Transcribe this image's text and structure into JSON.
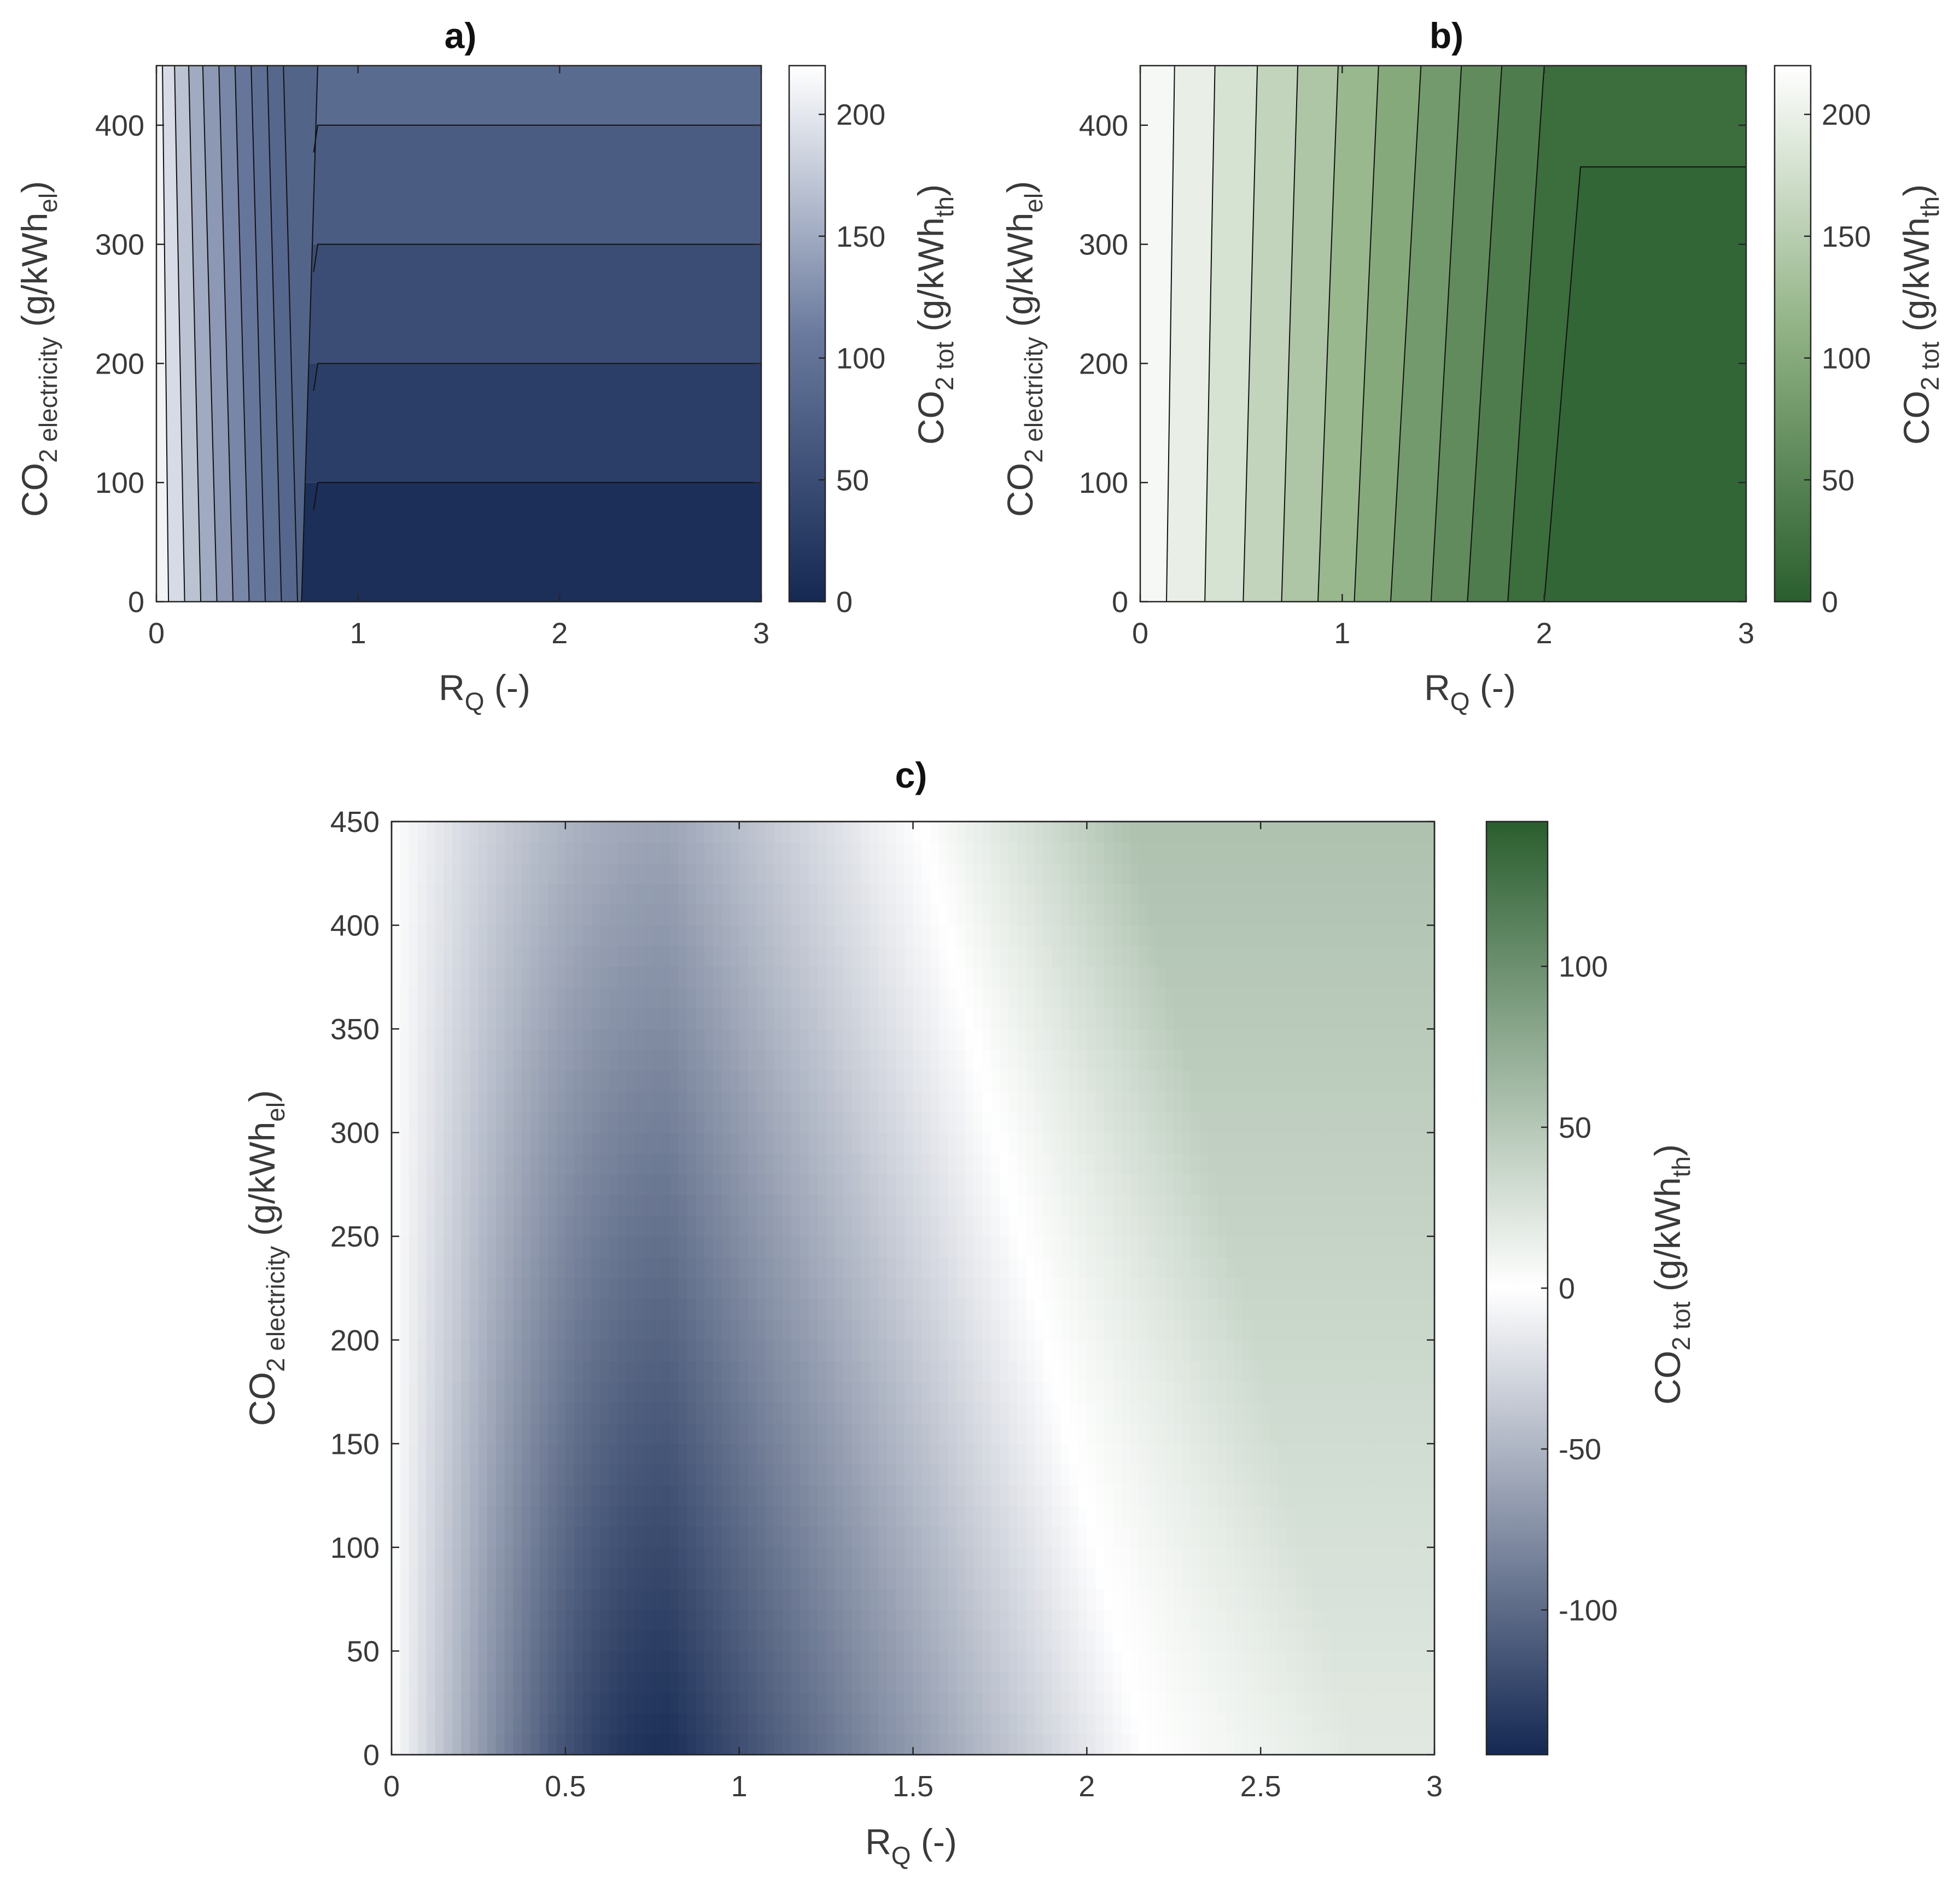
{
  "chart_data": [
    {
      "type": "contour",
      "title": "a)",
      "xlabel": {
        "main": "R",
        "sub": "Q",
        "rest": " (-)"
      },
      "ylabel": {
        "main": "CO",
        "sub": "2 electricity",
        "mid": " (g/kWh",
        "sub2": "el",
        "end": ")"
      },
      "colorbar_label": {
        "main": "CO",
        "sub": "2 tot",
        "mid": " (g/kWh",
        "sub2": "th",
        "end": ")"
      },
      "xlim": [
        0,
        3
      ],
      "ylim": [
        0,
        450
      ],
      "xticks": [
        "0",
        "1",
        "2",
        "3"
      ],
      "yticks": [
        "0",
        "100",
        "200",
        "300",
        "400"
      ],
      "clim": [
        0,
        220
      ],
      "cticks": [
        "0",
        "50",
        "100",
        "150",
        "200"
      ],
      "colormap": [
        "#142852",
        "#6a7a9e",
        "#ffffff"
      ],
      "levels": [
        0,
        20,
        40,
        60,
        80,
        100,
        120,
        140,
        160,
        180,
        200,
        220
      ],
      "contour_x_at_y0": [
        0.06,
        0.14,
        0.22,
        0.3,
        0.38,
        0.46,
        0.54,
        0.62,
        0.7
      ],
      "contour_x_at_y450": [
        0.03,
        0.09,
        0.16,
        0.23,
        0.31,
        0.39,
        0.47,
        0.55,
        0.63
      ],
      "plateau_boundaries_y": [
        100,
        200,
        300,
        400
      ],
      "bend_x": 0.8
    },
    {
      "type": "contour",
      "title": "b)",
      "xlabel": {
        "main": "R",
        "sub": "Q",
        "rest": " (-)"
      },
      "ylabel": {
        "main": "CO",
        "sub": "2 electricity",
        "mid": " (g/kWh",
        "sub2": "el",
        "end": ")"
      },
      "colorbar_label": {
        "main": "CO",
        "sub": "2 tot",
        "mid": " (g/kWh",
        "sub2": "th",
        "end": ")"
      },
      "xlim": [
        0,
        3
      ],
      "ylim": [
        0,
        450
      ],
      "xticks": [
        "0",
        "1",
        "2",
        "3"
      ],
      "yticks": [
        "0",
        "100",
        "200",
        "300",
        "400"
      ],
      "clim": [
        0,
        220
      ],
      "cticks": [
        "0",
        "50",
        "100",
        "150",
        "200"
      ],
      "colormap": [
        "#2a5e2e",
        "#8fb183",
        "#ffffff"
      ],
      "contour_x_at_y0": [
        0.13,
        0.32,
        0.51,
        0.7,
        0.88,
        1.06,
        1.24,
        1.44,
        1.62,
        1.82,
        2.0
      ],
      "contour_x_at_y450": [
        0.17,
        0.37,
        0.58,
        0.78,
        0.98,
        1.18,
        1.39,
        1.59,
        1.79,
        2.0
      ],
      "region_values": [
        210,
        198,
        180,
        160,
        140,
        120,
        100,
        80,
        60,
        40,
        20,
        10
      ],
      "plateau_boundary_y": 365,
      "bend_x": 2.18
    },
    {
      "type": "heatmap",
      "title": "c)",
      "xlabel": {
        "main": "R",
        "sub": "Q",
        "rest": " (-)"
      },
      "ylabel": {
        "main": "CO",
        "sub": "2 electricity",
        "mid": " (g/kWh",
        "sub2": "el",
        "end": ")"
      },
      "colorbar_label": {
        "main": "CO",
        "sub": "2 tot",
        "mid": " (g/kWh",
        "sub2": "th",
        "end": ")"
      },
      "xlim": [
        0,
        3
      ],
      "ylim": [
        0,
        450
      ],
      "xticks": [
        "0",
        "0.5",
        "1",
        "1.5",
        "2",
        "2.5",
        "3"
      ],
      "yticks": [
        "0",
        "50",
        "100",
        "150",
        "200",
        "250",
        "300",
        "350",
        "400",
        "450"
      ],
      "clim": [
        -145,
        145
      ],
      "cticks": [
        "-100",
        "-50",
        "0",
        "50",
        "100"
      ],
      "colormap": [
        "#142852",
        "#ffffff",
        "#2a5e2e"
      ],
      "zero_line": {
        "x_at_y0": 2.17,
        "x_at_y450": 1.52
      },
      "min_point": {
        "x": 0.8,
        "y": 0,
        "value": -140
      }
    }
  ]
}
